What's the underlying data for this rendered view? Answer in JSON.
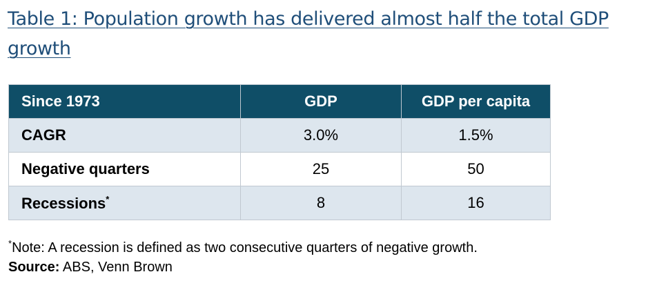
{
  "title": "Table 1: Population growth has delivered almost half the total GDP growth",
  "table": {
    "headers": [
      "Since 1973",
      "GDP",
      "GDP per capita"
    ],
    "rows": [
      {
        "label": "CAGR",
        "marker": "",
        "gdp": "3.0%",
        "gdp_per_capita": "1.5%"
      },
      {
        "label": "Negative quarters",
        "marker": "",
        "gdp": "25",
        "gdp_per_capita": "50"
      },
      {
        "label": "Recessions",
        "marker": "*",
        "gdp": "8",
        "gdp_per_capita": "16"
      }
    ]
  },
  "footnote": {
    "marker": "*",
    "text": "Note: A recession is defined as two consecutive quarters of negative growth."
  },
  "source": {
    "label": "Source:",
    "text": " ABS, Venn Brown"
  },
  "colors": {
    "title": "#1f4e79",
    "header_bg": "#0f4e67",
    "row_shade": "#dde6ee",
    "grid": "#c0c8d0"
  }
}
